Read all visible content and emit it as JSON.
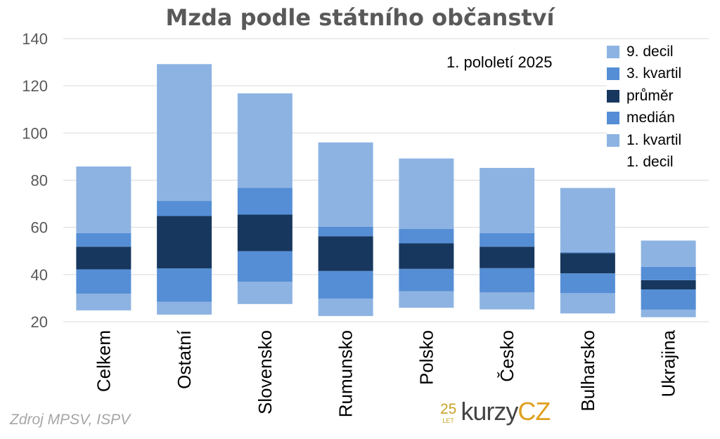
{
  "chart_data": {
    "type": "bar",
    "title": "Mzda podle státního občanství",
    "subtitle": "1. pololetí 2025",
    "source": "Zdroj MPSV, ISPV",
    "logo": {
      "number": "25",
      "small": "LET",
      "word": "kurzy",
      "suffix": "CZ"
    },
    "categories": [
      "Celkem",
      "Ostatní",
      "Slovensko",
      "Rumunsko",
      "Polsko",
      "Česko",
      "Bulharsko",
      "Ukrajina"
    ],
    "ylim": [
      20,
      140
    ],
    "yticks": [
      20,
      40,
      60,
      80,
      100,
      120,
      140
    ],
    "grid": true,
    "legend_position": "top-right",
    "series": [
      {
        "name": "1. decil",
        "values": [
          24.8,
          23.0,
          27.5,
          22.4,
          25.9,
          25.2,
          23.5,
          21.9
        ]
      },
      {
        "name": "1. kvartil",
        "values": [
          31.9,
          28.4,
          36.9,
          29.8,
          32.9,
          32.4,
          32.1,
          25.1
        ]
      },
      {
        "name": "medián",
        "values": [
          42.2,
          42.6,
          49.9,
          41.5,
          42.4,
          42.7,
          40.5,
          33.7
        ]
      },
      {
        "name": "průměr",
        "values": [
          51.8,
          64.8,
          65.4,
          56.2,
          53.2,
          51.8,
          49.1,
          37.6
        ]
      },
      {
        "name": "3. kvartil",
        "values": [
          57.6,
          71.2,
          76.8,
          60.3,
          59.3,
          57.6,
          49.5,
          43.3
        ]
      },
      {
        "name": "9. decil",
        "values": [
          85.8,
          129.2,
          116.8,
          96.0,
          89.2,
          85.2,
          76.7,
          54.4
        ]
      }
    ],
    "colors": {
      "decile_band": "#8db3e2",
      "quartile_band": "#558ed5",
      "mean_band": "#17375e",
      "grid": "#d9d9d9",
      "axis_text": "#595959"
    },
    "legend": [
      {
        "label": "9. decil",
        "color": "#8db3e2"
      },
      {
        "label": "3. kvartil",
        "color": "#558ed5"
      },
      {
        "label": "průměr",
        "color": "#17375e"
      },
      {
        "label": "medián",
        "color": "#558ed5"
      },
      {
        "label": "1. kvartil",
        "color": "#8db3e2"
      },
      {
        "label": "1. decil",
        "color": "#ffffff"
      }
    ]
  }
}
